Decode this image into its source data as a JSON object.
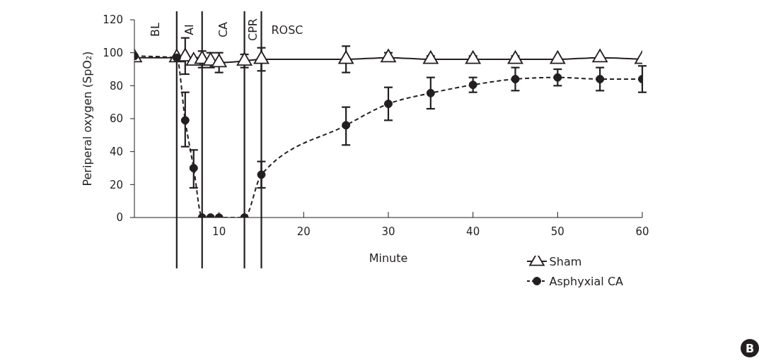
{
  "chart_data": {
    "type": "line",
    "xlabel": "Minute",
    "ylabel": "Periperal oxygen (SpO₂)",
    "xlim": [
      0,
      60
    ],
    "xticks": [
      10,
      20,
      30,
      40,
      50,
      60
    ],
    "ylim": [
      0,
      120
    ],
    "yticks": [
      0,
      20,
      40,
      60,
      80,
      100,
      120
    ],
    "grid": false,
    "legend": "bottom right",
    "series": [
      {
        "name": "Sham",
        "color": "#231f20",
        "marker": "triangle",
        "line_style": "solid",
        "x": [
          0,
          5,
          6,
          7,
          8,
          9,
          10,
          13,
          15,
          25,
          30,
          35,
          40,
          45,
          50,
          55,
          60
        ],
        "values": [
          97,
          97,
          97.5,
          95,
          96,
          95,
          94,
          95,
          96,
          96,
          97,
          96,
          96,
          96,
          96,
          97,
          96
        ],
        "errors": [
          null,
          null,
          [
            87,
            109
          ],
          [
            93,
            97
          ],
          [
            91,
            101
          ],
          [
            91,
            100
          ],
          [
            88,
            100
          ],
          [
            91,
            99
          ],
          [
            89,
            103
          ],
          [
            88,
            104
          ],
          [
            95,
            100
          ],
          [
            94,
            98
          ],
          [
            95,
            98
          ],
          [
            94,
            98
          ],
          null,
          null,
          null
        ]
      },
      {
        "name": "Asphyxial CA",
        "color": "#231f20",
        "marker": "circle",
        "line_style": "dashed",
        "x": [
          0,
          5,
          6,
          7,
          8,
          9,
          10,
          13,
          15,
          25,
          30,
          35,
          40,
          45,
          50,
          55,
          60
        ],
        "values": [
          98,
          97,
          59,
          30,
          0,
          0,
          0,
          0,
          26,
          56,
          69,
          75.5,
          80.5,
          84,
          85,
          84,
          84
        ],
        "errors": [
          null,
          null,
          [
            43,
            76
          ],
          [
            18,
            41
          ],
          null,
          null,
          null,
          null,
          [
            18,
            34
          ],
          [
            44,
            67
          ],
          [
            59,
            79
          ],
          [
            66,
            85
          ],
          [
            76,
            85
          ],
          [
            77,
            91
          ],
          [
            80,
            90
          ],
          [
            77,
            91
          ],
          [
            76,
            92
          ]
        ]
      }
    ],
    "ref_lines": [
      {
        "axis": "x",
        "value": 5,
        "color": "#231f20"
      },
      {
        "axis": "x",
        "value": 8,
        "color": "#231f20"
      },
      {
        "axis": "x",
        "value": 13,
        "color": "#231f20"
      },
      {
        "axis": "x",
        "value": 15,
        "color": "#231f20"
      }
    ],
    "annotations": [
      "BL",
      "AI",
      "CA",
      "CPR",
      "ROSC",
      "B"
    ]
  }
}
